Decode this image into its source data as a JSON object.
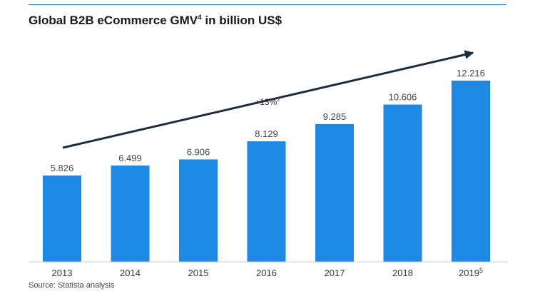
{
  "chart_data": {
    "type": "bar",
    "title": "Global B2B eCommerce GMV",
    "title_sup": "4",
    "title_suffix": " in billion US$",
    "categories": [
      "2013",
      "2014",
      "2015",
      "2016",
      "2017",
      "2018",
      "2019"
    ],
    "category_sups": [
      "",
      "",
      "",
      "",
      "",
      "",
      "5"
    ],
    "values": [
      5.826,
      6.499,
      6.906,
      8.129,
      9.285,
      10.606,
      12.216
    ],
    "value_labels": [
      "5.826",
      "6.499",
      "6.906",
      "8.129",
      "9.285",
      "10.606",
      "12.216"
    ],
    "ylim": [
      0,
      12.216
    ],
    "grid": false,
    "annotation": {
      "text": "+13%",
      "sup": "2"
    },
    "source": "Source: Statista analysis",
    "colors": {
      "bar": "#1e88e5",
      "arrow": "#1a2b3c",
      "rule": "#1e88e5",
      "axis": "#cccccc"
    }
  }
}
